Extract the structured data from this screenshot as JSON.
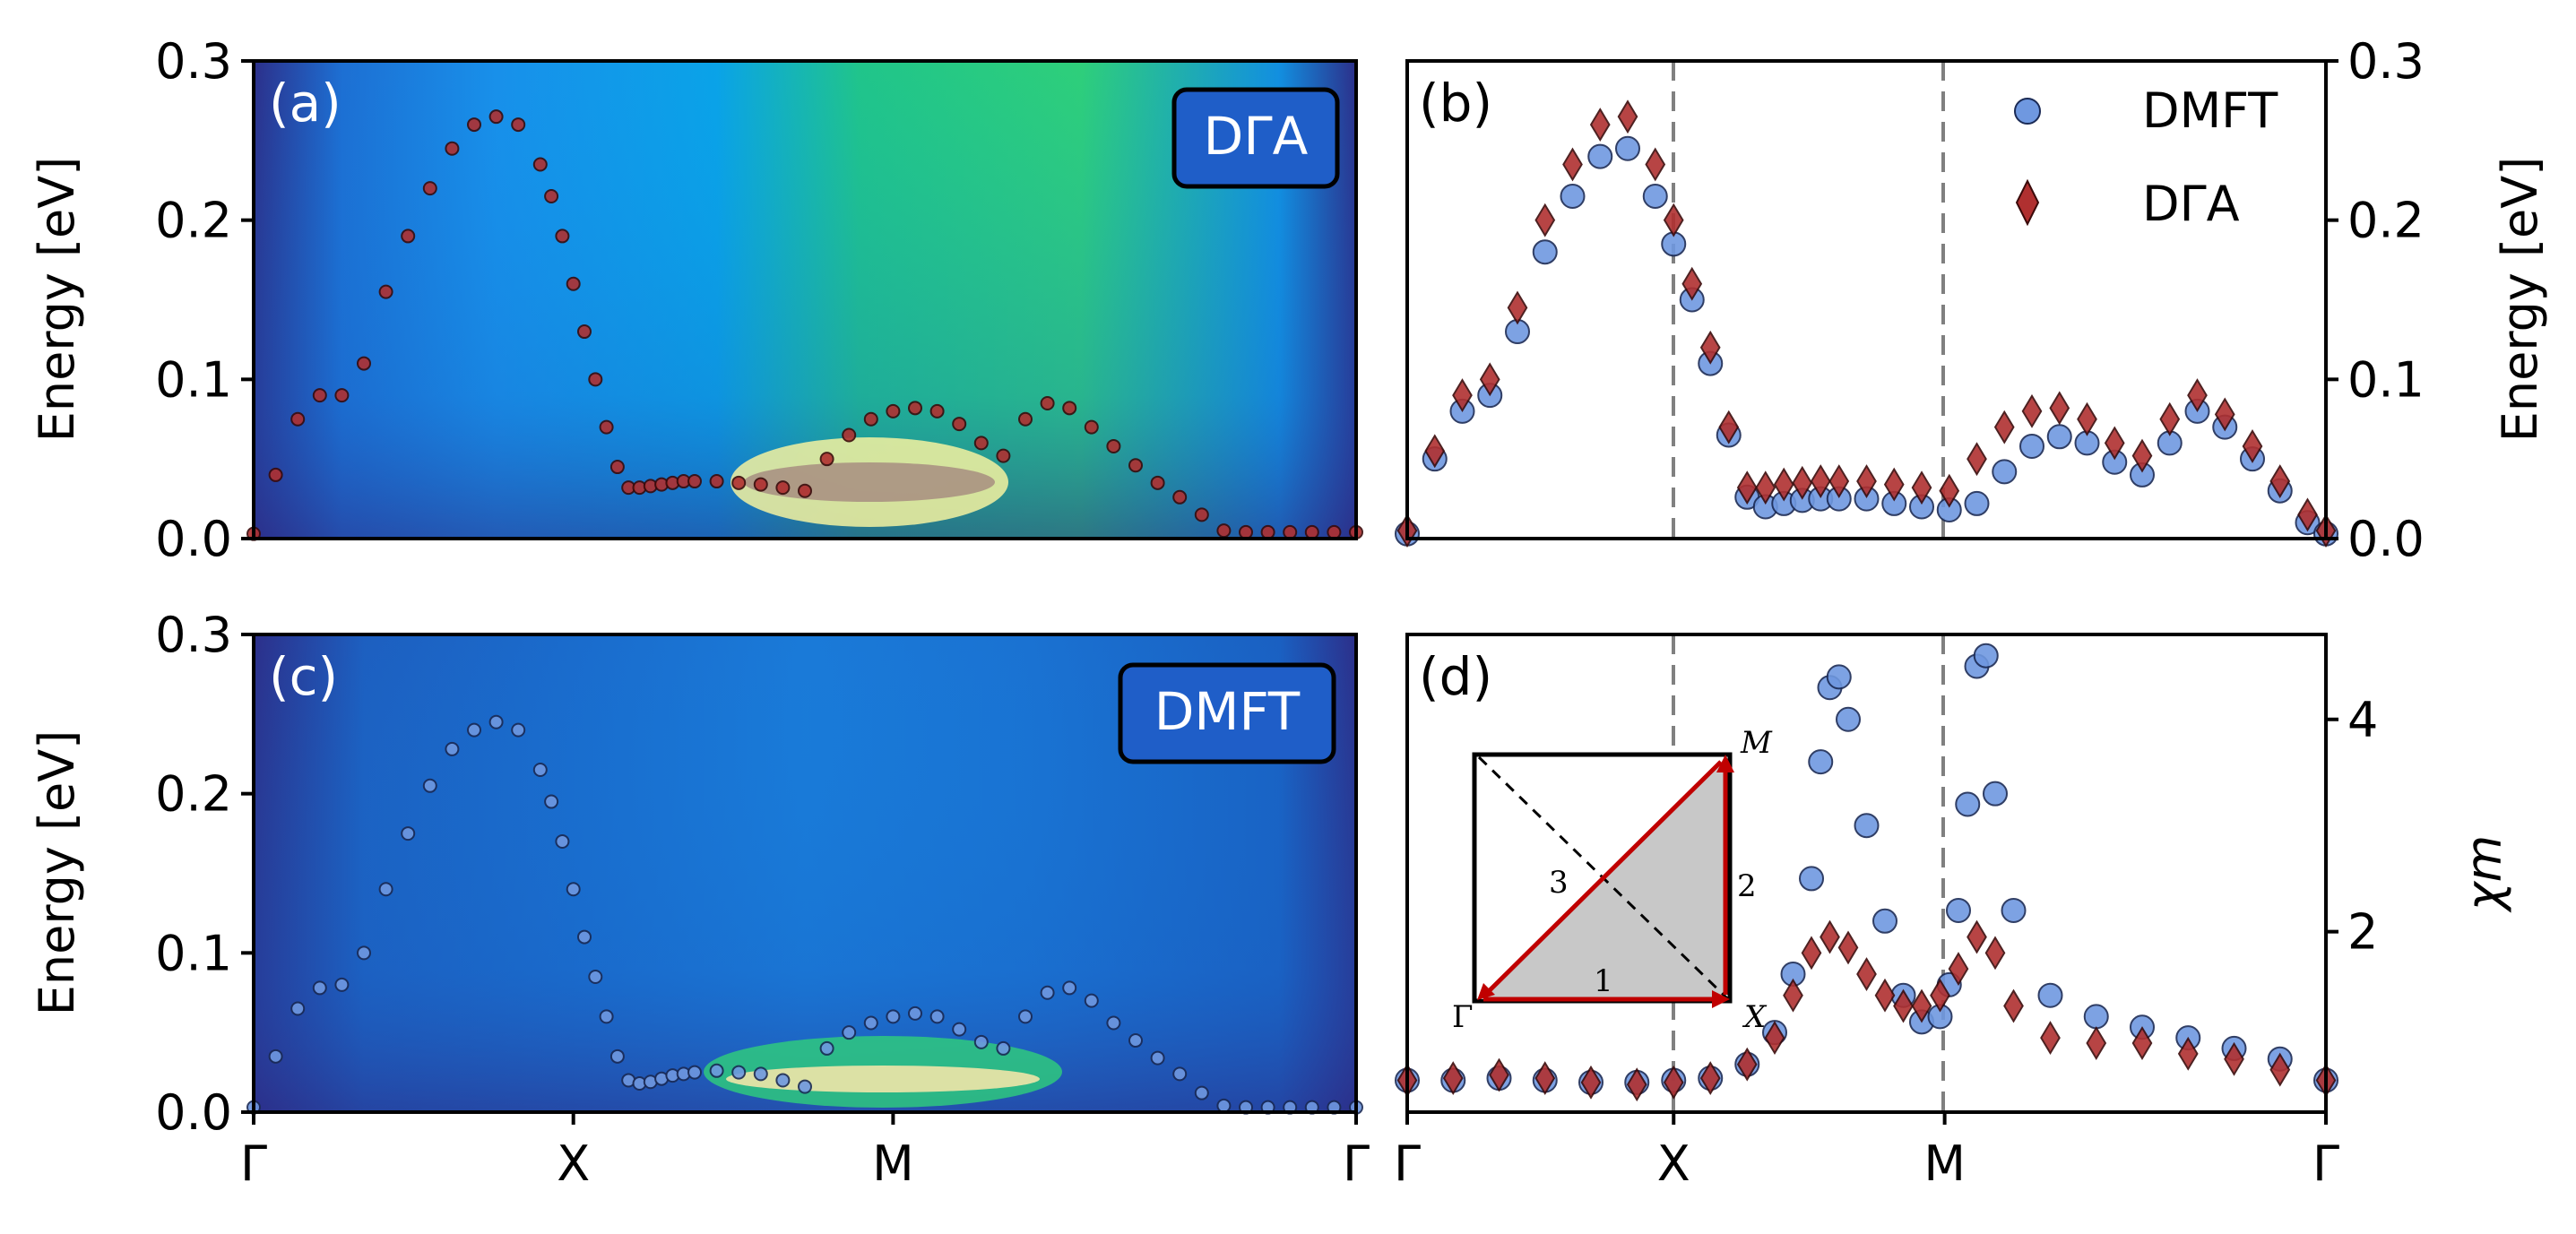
{
  "chart_data": [
    {
      "panel": "a",
      "type": "heatmap",
      "panel_label": "(a)",
      "badge": "DΓA",
      "ylabel": "Energy [eV]",
      "ylim": [
        0.0,
        0.3
      ],
      "yticks": [
        "0.0",
        "0.1",
        "0.2",
        "0.3"
      ],
      "xticks": [
        "Γ",
        "X",
        "M",
        "Γ"
      ],
      "series": [
        {
          "name": "DΓA dispersion",
          "color": "#b03030",
          "x": [
            0,
            0.02,
            0.04,
            0.06,
            0.08,
            0.1,
            0.12,
            0.14,
            0.16,
            0.18,
            0.2,
            0.22,
            0.24,
            0.26,
            0.27,
            0.28,
            0.29,
            0.3,
            0.31,
            0.32,
            0.33,
            0.34,
            0.35,
            0.36,
            0.37,
            0.38,
            0.39,
            0.4,
            0.42,
            0.44,
            0.46,
            0.48,
            0.5,
            0.52,
            0.54,
            0.56,
            0.58,
            0.6,
            0.62,
            0.64,
            0.66,
            0.68,
            0.7,
            0.72,
            0.74,
            0.76,
            0.78,
            0.8,
            0.82,
            0.84,
            0.86,
            0.88,
            0.9,
            0.92,
            0.94,
            0.96,
            0.98,
            1.0
          ],
          "y": [
            0.003,
            0.04,
            0.075,
            0.09,
            0.09,
            0.11,
            0.155,
            0.19,
            0.22,
            0.245,
            0.26,
            0.265,
            0.26,
            0.235,
            0.215,
            0.19,
            0.16,
            0.13,
            0.1,
            0.07,
            0.045,
            0.032,
            0.032,
            0.033,
            0.034,
            0.035,
            0.036,
            0.036,
            0.036,
            0.035,
            0.034,
            0.032,
            0.03,
            0.05,
            0.065,
            0.075,
            0.08,
            0.082,
            0.08,
            0.072,
            0.06,
            0.052,
            0.075,
            0.085,
            0.082,
            0.07,
            0.058,
            0.046,
            0.035,
            0.026,
            0.015,
            0.005,
            0.004,
            0.004,
            0.004,
            0.004,
            0.004,
            0.004
          ]
        }
      ]
    },
    {
      "panel": "b",
      "type": "scatter",
      "panel_label": "(b)",
      "ylabel": "Energy [eV]",
      "ylim": [
        0.0,
        0.3
      ],
      "yticks": [
        "0.0",
        "0.1",
        "0.2",
        "0.3"
      ],
      "legend": [
        {
          "label": "DMFT",
          "marker": "circle",
          "color": "#6f98e0"
        },
        {
          "label": "DΓA",
          "marker": "diamond",
          "color": "#b03030"
        }
      ],
      "series": [
        {
          "name": "DMFT",
          "color": "#6f98e0",
          "x": [
            0,
            0.03,
            0.06,
            0.09,
            0.12,
            0.15,
            0.18,
            0.21,
            0.24,
            0.27,
            0.29,
            0.31,
            0.33,
            0.35,
            0.37,
            0.39,
            0.41,
            0.43,
            0.45,
            0.47,
            0.5,
            0.53,
            0.56,
            0.59,
            0.62,
            0.65,
            0.68,
            0.71,
            0.74,
            0.77,
            0.8,
            0.83,
            0.86,
            0.89,
            0.92,
            0.95,
            0.98,
            1.0
          ],
          "y": [
            0.003,
            0.05,
            0.08,
            0.09,
            0.13,
            0.18,
            0.215,
            0.24,
            0.245,
            0.215,
            0.185,
            0.15,
            0.11,
            0.065,
            0.026,
            0.02,
            0.022,
            0.024,
            0.025,
            0.025,
            0.025,
            0.022,
            0.02,
            0.018,
            0.022,
            0.042,
            0.058,
            0.064,
            0.06,
            0.048,
            0.04,
            0.06,
            0.08,
            0.07,
            0.05,
            0.03,
            0.01,
            0.003
          ]
        },
        {
          "name": "DΓA",
          "color": "#b03030",
          "x": [
            0,
            0.03,
            0.06,
            0.09,
            0.12,
            0.15,
            0.18,
            0.21,
            0.24,
            0.27,
            0.29,
            0.31,
            0.33,
            0.35,
            0.37,
            0.39,
            0.41,
            0.43,
            0.45,
            0.47,
            0.5,
            0.53,
            0.56,
            0.59,
            0.62,
            0.65,
            0.68,
            0.71,
            0.74,
            0.77,
            0.8,
            0.83,
            0.86,
            0.89,
            0.92,
            0.95,
            0.98,
            1.0
          ],
          "y": [
            0.005,
            0.055,
            0.09,
            0.1,
            0.145,
            0.2,
            0.235,
            0.26,
            0.265,
            0.235,
            0.2,
            0.16,
            0.12,
            0.07,
            0.032,
            0.032,
            0.034,
            0.035,
            0.036,
            0.036,
            0.036,
            0.034,
            0.032,
            0.03,
            0.05,
            0.07,
            0.08,
            0.082,
            0.075,
            0.06,
            0.052,
            0.075,
            0.09,
            0.078,
            0.058,
            0.036,
            0.015,
            0.005
          ]
        }
      ]
    },
    {
      "panel": "c",
      "type": "heatmap",
      "panel_label": "(c)",
      "badge": "DMFT",
      "ylabel": "Energy [eV]",
      "ylim": [
        0.0,
        0.3
      ],
      "yticks": [
        "0.0",
        "0.1",
        "0.2",
        "0.3"
      ],
      "xticks": [
        "Γ",
        "X",
        "M",
        "Γ"
      ],
      "series": [
        {
          "name": "DMFT dispersion",
          "color": "#6f98e0",
          "x": [
            0,
            0.02,
            0.04,
            0.06,
            0.08,
            0.1,
            0.12,
            0.14,
            0.16,
            0.18,
            0.2,
            0.22,
            0.24,
            0.26,
            0.27,
            0.28,
            0.29,
            0.3,
            0.31,
            0.32,
            0.33,
            0.34,
            0.35,
            0.36,
            0.37,
            0.38,
            0.39,
            0.4,
            0.42,
            0.44,
            0.46,
            0.48,
            0.5,
            0.52,
            0.54,
            0.56,
            0.58,
            0.6,
            0.62,
            0.64,
            0.66,
            0.68,
            0.7,
            0.72,
            0.74,
            0.76,
            0.78,
            0.8,
            0.82,
            0.84,
            0.86,
            0.88,
            0.9,
            0.92,
            0.94,
            0.96,
            0.98,
            1.0
          ],
          "y": [
            0.003,
            0.035,
            0.065,
            0.078,
            0.08,
            0.1,
            0.14,
            0.175,
            0.205,
            0.228,
            0.24,
            0.245,
            0.24,
            0.215,
            0.195,
            0.17,
            0.14,
            0.11,
            0.085,
            0.06,
            0.035,
            0.02,
            0.018,
            0.019,
            0.021,
            0.023,
            0.024,
            0.025,
            0.026,
            0.025,
            0.024,
            0.02,
            0.016,
            0.04,
            0.05,
            0.056,
            0.06,
            0.062,
            0.06,
            0.052,
            0.044,
            0.04,
            0.06,
            0.075,
            0.078,
            0.07,
            0.056,
            0.045,
            0.034,
            0.024,
            0.012,
            0.004,
            0.003,
            0.003,
            0.003,
            0.003,
            0.003,
            0.003
          ]
        }
      ]
    },
    {
      "panel": "d",
      "type": "scatter",
      "panel_label": "(d)",
      "ylabel": "χm",
      "yticks": [
        "2",
        "4"
      ],
      "ylim": [
        0.3,
        4.8
      ],
      "xticks": [
        "Γ",
        "X",
        "M",
        "Γ"
      ],
      "inset": {
        "corner_labels": [
          "Γ",
          "X",
          "M"
        ],
        "path_labels": [
          "1",
          "2",
          "3"
        ]
      },
      "series": [
        {
          "name": "DMFT",
          "color": "#6f98e0",
          "x": [
            0,
            0.05,
            0.1,
            0.15,
            0.2,
            0.25,
            0.29,
            0.33,
            0.37,
            0.4,
            0.42,
            0.44,
            0.45,
            0.46,
            0.47,
            0.48,
            0.5,
            0.52,
            0.54,
            0.56,
            0.58,
            0.59,
            0.6,
            0.61,
            0.62,
            0.63,
            0.64,
            0.66,
            0.7,
            0.75,
            0.8,
            0.85,
            0.9,
            0.95,
            1.0
          ],
          "y": [
            0.6,
            0.6,
            0.62,
            0.6,
            0.58,
            0.58,
            0.6,
            0.62,
            0.75,
            1.05,
            1.6,
            2.5,
            3.6,
            4.3,
            4.4,
            4.0,
            3.0,
            2.1,
            1.4,
            1.15,
            1.2,
            1.5,
            2.2,
            3.2,
            4.5,
            4.6,
            3.3,
            2.2,
            1.4,
            1.2,
            1.1,
            1.0,
            0.9,
            0.8,
            0.6
          ]
        },
        {
          "name": "DΓA",
          "color": "#b03030",
          "x": [
            0,
            0.05,
            0.1,
            0.15,
            0.2,
            0.25,
            0.29,
            0.33,
            0.37,
            0.4,
            0.42,
            0.44,
            0.46,
            0.48,
            0.5,
            0.52,
            0.54,
            0.56,
            0.58,
            0.6,
            0.62,
            0.64,
            0.66,
            0.7,
            0.75,
            0.8,
            0.85,
            0.9,
            0.95,
            1.0
          ],
          "y": [
            0.6,
            0.62,
            0.65,
            0.62,
            0.58,
            0.56,
            0.58,
            0.62,
            0.75,
            1.0,
            1.4,
            1.8,
            1.95,
            1.85,
            1.6,
            1.4,
            1.3,
            1.3,
            1.4,
            1.65,
            1.95,
            1.8,
            1.3,
            1.0,
            0.95,
            0.95,
            0.85,
            0.8,
            0.7,
            0.6
          ]
        }
      ]
    }
  ]
}
